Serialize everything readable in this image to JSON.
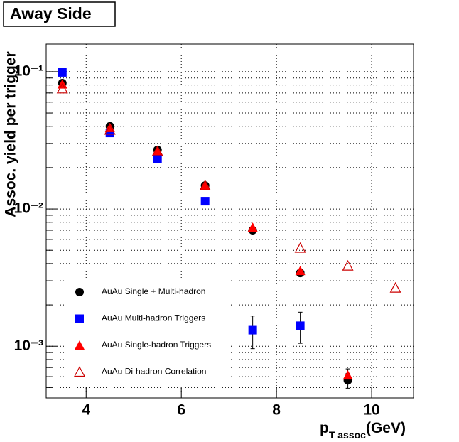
{
  "chart_data": {
    "type": "scatter",
    "title": "Away Side",
    "xlabel": {
      "main": "p",
      "sub": "T assoc",
      "unit": "(GeV)"
    },
    "ylabel": "Assoc. yield per trigger",
    "x": [
      3.5,
      4.5,
      5.5,
      6.5,
      7.5,
      8.5,
      9.5,
      10.5
    ],
    "series": [
      {
        "name": "AuAu Single + Multi-hadron",
        "color": "#000000",
        "marker": "circle",
        "values": [
          0.0826,
          0.04,
          0.0269,
          0.0148,
          0.007,
          0.00342,
          0.000564,
          null
        ],
        "errors": [
          null,
          null,
          null,
          null,
          null,
          null,
          7e-05,
          null
        ]
      },
      {
        "name": "AuAu Multi-hadron Triggers",
        "color": "#0000ff",
        "marker": "square",
        "values": [
          0.0988,
          0.0358,
          0.0231,
          0.0114,
          0.00131,
          0.00141,
          null,
          null
        ],
        "errors": [
          null,
          null,
          null,
          null,
          0.00035,
          0.00036,
          null,
          null
        ]
      },
      {
        "name": "AuAu Single-hadron Triggers",
        "color": "#ff0000",
        "marker": "triangle",
        "values": [
          0.081,
          0.039,
          0.0266,
          0.0148,
          0.00733,
          0.00354,
          0.000614,
          null
        ],
        "errors": [
          null,
          null,
          null,
          null,
          null,
          null,
          7e-05,
          null
        ]
      },
      {
        "name": "AuAu Di-hadron Correlation",
        "color": "#cc0000",
        "marker": "open-triangle",
        "values": [
          0.0752,
          0.0376,
          0.0263,
          0.0148,
          null,
          0.00519,
          0.00385,
          0.00266
        ],
        "errors": [
          null,
          null,
          null,
          null,
          null,
          null,
          null,
          null
        ]
      }
    ],
    "xlim": [
      3.16,
      10.88
    ],
    "xticks": [
      4,
      6,
      8,
      10
    ],
    "ylim": [
      0.00042,
      0.159
    ],
    "ylog": true,
    "yticks": [
      {
        "value": 0.001,
        "label": "10⁻³"
      },
      {
        "value": 0.01,
        "label": "10⁻²"
      },
      {
        "value": 0.1,
        "label": "10⁻¹"
      }
    ],
    "yminorticks": [
      0.0005,
      0.0006,
      0.0007,
      0.0008,
      0.0009,
      0.002,
      0.003,
      0.004,
      0.005,
      0.006,
      0.007,
      0.008,
      0.009,
      0.02,
      0.03,
      0.04,
      0.05,
      0.06,
      0.07,
      0.08,
      0.09
    ],
    "grid": true
  }
}
